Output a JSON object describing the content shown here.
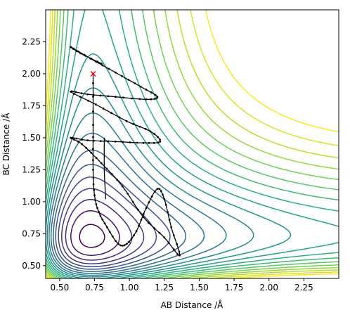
{
  "chart_data": {
    "type": "contour",
    "title": "",
    "xlabel": "AB Distance /Å",
    "ylabel": "BC Distance /Å",
    "xlim": [
      0.4,
      2.5
    ],
    "ylim": [
      0.4,
      2.5
    ],
    "x_ticks": [
      0.5,
      0.75,
      1.0,
      1.25,
      1.5,
      1.75,
      2.0,
      2.25
    ],
    "x_tick_labels": [
      "0.50",
      "0.75",
      "1.00",
      "1.25",
      "1.50",
      "1.75",
      "2.00",
      "2.25"
    ],
    "y_ticks": [
      0.5,
      0.75,
      1.0,
      1.25,
      1.5,
      1.75,
      2.0,
      2.25
    ],
    "y_tick_labels": [
      "0.50",
      "0.75",
      "1.00",
      "1.25",
      "1.50",
      "1.75",
      "2.00",
      "2.25"
    ],
    "grid": false,
    "legend": "none",
    "colormap": "viridis",
    "contour_levels": 20,
    "colors": {
      "trajectory": "#000000",
      "start_marker": "#ff0000",
      "cmap_stops": [
        "#440154",
        "#482878",
        "#3e4989",
        "#31688e",
        "#26828e",
        "#1f9e89",
        "#35b779",
        "#6ece58",
        "#b5de2b",
        "#fde725"
      ]
    },
    "start_point": {
      "x": 0.74,
      "y": 2.0,
      "marker": "x"
    },
    "trajectory": [
      [
        0.74,
        2.0
      ],
      [
        0.74,
        1.6
      ],
      [
        0.74,
        1.25
      ],
      [
        0.75,
        1.05
      ],
      [
        0.78,
        0.92
      ],
      [
        0.84,
        0.8
      ],
      [
        0.92,
        0.67
      ],
      [
        0.98,
        0.67
      ],
      [
        1.05,
        0.77
      ],
      [
        1.12,
        0.95
      ],
      [
        1.2,
        1.1
      ],
      [
        1.25,
        1.02
      ],
      [
        1.3,
        0.8
      ],
      [
        1.36,
        0.58
      ],
      [
        1.25,
        0.72
      ],
      [
        1.1,
        0.88
      ],
      [
        0.95,
        1.12
      ],
      [
        0.8,
        1.3
      ],
      [
        0.66,
        1.45
      ],
      [
        0.58,
        1.5
      ],
      [
        0.7,
        1.48
      ],
      [
        0.9,
        1.47
      ],
      [
        1.1,
        1.46
      ],
      [
        1.22,
        1.47
      ],
      [
        1.15,
        1.55
      ],
      [
        0.98,
        1.63
      ],
      [
        0.76,
        1.76
      ],
      [
        0.58,
        1.86
      ],
      [
        0.7,
        1.84
      ],
      [
        0.9,
        1.82
      ],
      [
        1.12,
        1.8
      ],
      [
        1.2,
        1.82
      ],
      [
        1.08,
        1.9
      ],
      [
        0.9,
        2.01
      ],
      [
        0.72,
        2.12
      ],
      [
        0.58,
        2.21
      ],
      [
        0.65,
        2.16
      ],
      [
        0.8,
        2.08
      ]
    ],
    "spike": [
      [
        0.82,
        1.5
      ],
      [
        0.82,
        1.25
      ],
      [
        0.83,
        1.02
      ]
    ]
  }
}
